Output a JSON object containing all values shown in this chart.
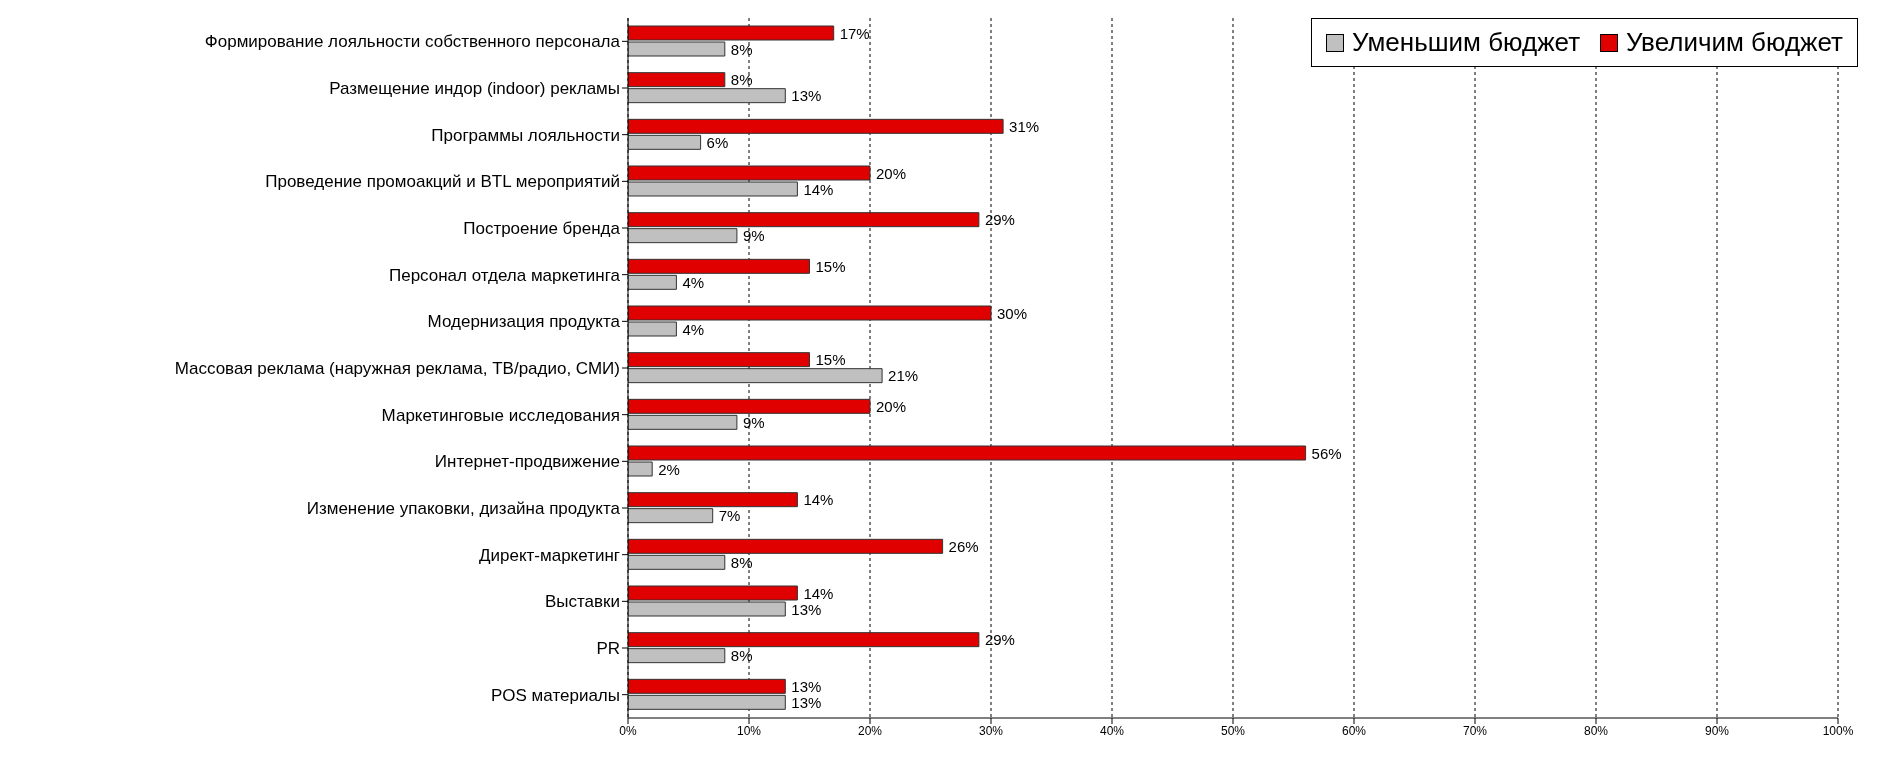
{
  "chart_data": {
    "type": "bar",
    "orientation": "horizontal",
    "categories": [
      "Формирование лояльности собственного персонала",
      "Размещение индор (indoor) рекламы",
      "Программы лояльности",
      "Проведение промоакций и BTL мероприятий",
      "Построение бренда",
      "Персонал отдела маркетинга",
      "Модернизация продукта",
      "Массовая реклама (наружная реклама, ТВ/радио, СМИ)",
      "Маркетинговые исследования",
      "Интернет-продвижение",
      "Изменение упаковки, дизайна продукта",
      "Директ-маркетинг",
      "Выставки",
      "PR",
      "POS материалы"
    ],
    "series": [
      {
        "name": "Уменьшим бюджет",
        "color": "#c0c0c0",
        "values": [
          8,
          13,
          6,
          14,
          9,
          4,
          4,
          21,
          9,
          2,
          7,
          8,
          13,
          8,
          13
        ],
        "value_labels": [
          "8%",
          "13%",
          "6%",
          "14%",
          "9%",
          "4%",
          "4%",
          "21%",
          "9%",
          "2%",
          "7%",
          "8%",
          "13%",
          "8%",
          "13%"
        ]
      },
      {
        "name": "Увеличим бюджет",
        "color": "#e00000",
        "values": [
          17,
          8,
          31,
          20,
          29,
          15,
          30,
          15,
          20,
          56,
          14,
          26,
          14,
          29,
          13
        ],
        "value_labels": [
          "17%",
          "8%",
          "31%",
          "20%",
          "29%",
          "15%",
          "30%",
          "15%",
          "20%",
          "56%",
          "14%",
          "26%",
          "14%",
          "29%",
          "13%"
        ]
      }
    ],
    "xlim": [
      0,
      100
    ],
    "xticks": [
      {
        "value": 0,
        "label": "0%"
      },
      {
        "value": 10,
        "label": "10%"
      },
      {
        "value": 20,
        "label": "20%"
      },
      {
        "value": 30,
        "label": "30%"
      },
      {
        "value": 40,
        "label": "40%"
      },
      {
        "value": 50,
        "label": "50%"
      },
      {
        "value": 60,
        "label": "60%"
      },
      {
        "value": 70,
        "label": "70%"
      },
      {
        "value": 80,
        "label": "80%"
      },
      {
        "value": 90,
        "label": "90%"
      },
      {
        "value": 100,
        "label": "100%"
      }
    ],
    "grid": "x",
    "legend": "top right"
  }
}
